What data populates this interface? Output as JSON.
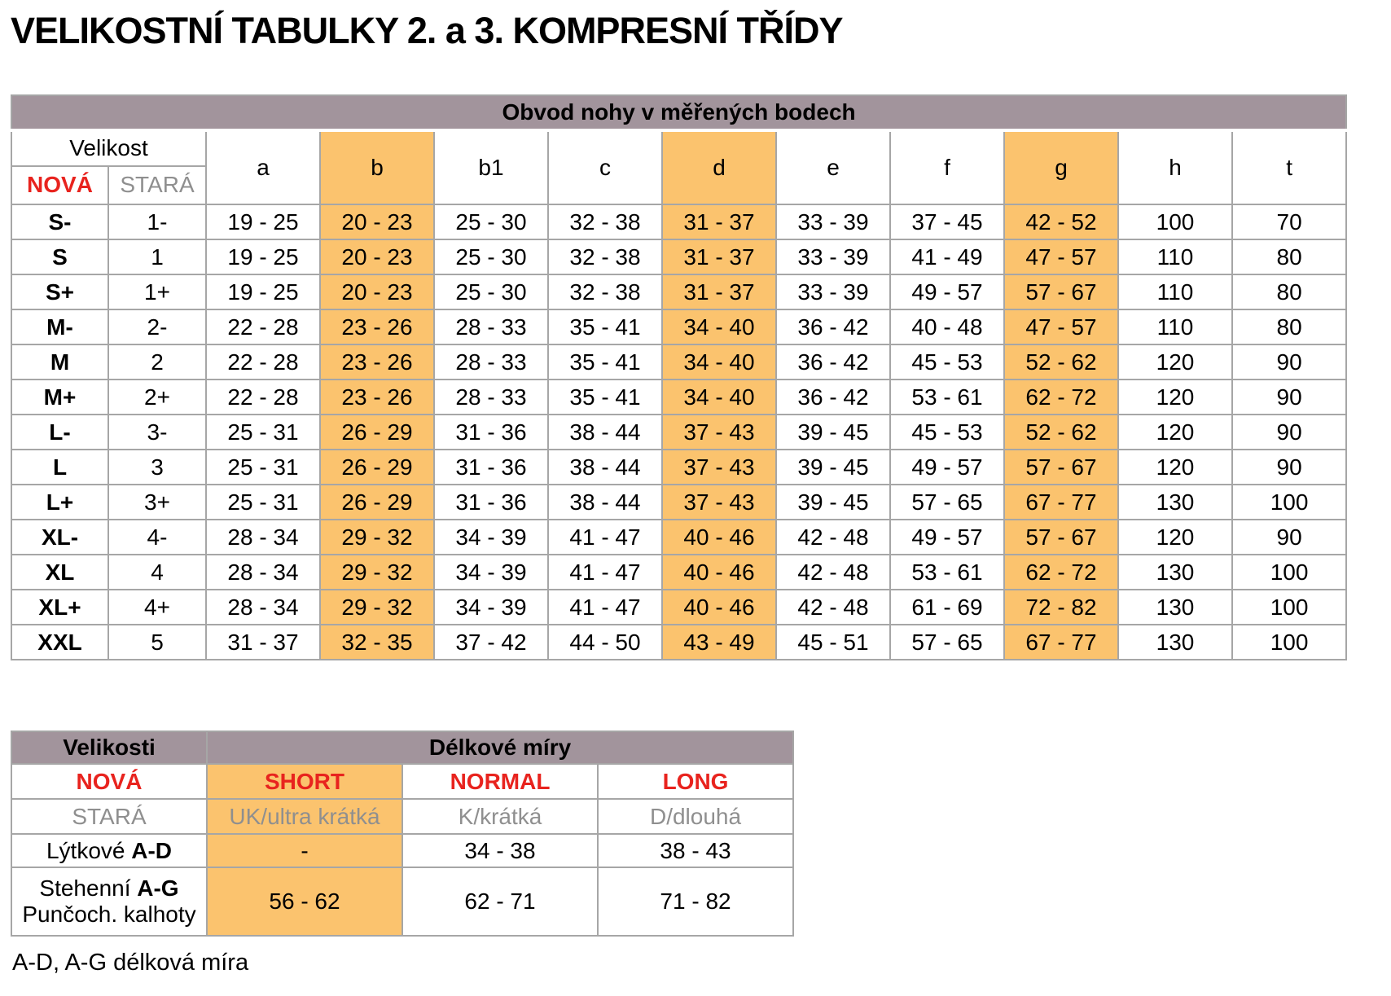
{
  "title": "VELIKOSTNÍ TABULKY 2. a 3. KOMPRESNÍ TŘÍDY",
  "colors": {
    "header_band": "#a2949c",
    "highlight": "#fbc36e",
    "accent_red": "#e8231e",
    "muted_gray": "#8f8f8f",
    "border_gray": "#a6a6a6"
  },
  "size_table": {
    "band_title": "Obvod nohy v měřených bodech",
    "size_header": "Velikost",
    "new_label": "NOVÁ",
    "old_label": "STARÁ",
    "columns": [
      "a",
      "b",
      "b1",
      "c",
      "d",
      "e",
      "f",
      "g",
      "h",
      "t"
    ],
    "highlight_indexes": [
      1,
      4,
      7
    ],
    "rows": [
      {
        "new": "S-",
        "old": "1-",
        "values": [
          "19 - 25",
          "20 - 23",
          "25 - 30",
          "32 - 38",
          "31 - 37",
          "33 - 39",
          "37 - 45",
          "42 - 52",
          "100",
          "70"
        ]
      },
      {
        "new": "S",
        "old": "1",
        "values": [
          "19 - 25",
          "20 - 23",
          "25 - 30",
          "32 - 38",
          "31 - 37",
          "33 - 39",
          "41 - 49",
          "47 - 57",
          "110",
          "80"
        ]
      },
      {
        "new": "S+",
        "old": "1+",
        "values": [
          "19 - 25",
          "20 - 23",
          "25 - 30",
          "32 - 38",
          "31 - 37",
          "33 - 39",
          "49 - 57",
          "57 - 67",
          "110",
          "80"
        ]
      },
      {
        "new": "M-",
        "old": "2-",
        "values": [
          "22 - 28",
          "23 - 26",
          "28 - 33",
          "35 - 41",
          "34 - 40",
          "36 - 42",
          "40 - 48",
          "47 - 57",
          "110",
          "80"
        ]
      },
      {
        "new": "M",
        "old": "2",
        "values": [
          "22 - 28",
          "23 - 26",
          "28 - 33",
          "35 - 41",
          "34 - 40",
          "36 - 42",
          "45 - 53",
          "52 - 62",
          "120",
          "90"
        ]
      },
      {
        "new": "M+",
        "old": "2+",
        "values": [
          "22 - 28",
          "23 - 26",
          "28 - 33",
          "35 - 41",
          "34 - 40",
          "36 - 42",
          "53 - 61",
          "62 - 72",
          "120",
          "90"
        ]
      },
      {
        "new": "L-",
        "old": "3-",
        "values": [
          "25 - 31",
          "26 - 29",
          "31 - 36",
          "38 - 44",
          "37 - 43",
          "39 - 45",
          "45 - 53",
          "52 - 62",
          "120",
          "90"
        ]
      },
      {
        "new": "L",
        "old": "3",
        "values": [
          "25 - 31",
          "26 - 29",
          "31 - 36",
          "38 - 44",
          "37 - 43",
          "39 - 45",
          "49 - 57",
          "57 - 67",
          "120",
          "90"
        ]
      },
      {
        "new": "L+",
        "old": "3+",
        "values": [
          "25 - 31",
          "26 - 29",
          "31 - 36",
          "38 - 44",
          "37 - 43",
          "39 - 45",
          "57 - 65",
          "67 - 77",
          "130",
          "100"
        ]
      },
      {
        "new": "XL-",
        "old": "4-",
        "values": [
          "28 - 34",
          "29 - 32",
          "34 - 39",
          "41 - 47",
          "40 - 46",
          "42 - 48",
          "49 - 57",
          "57 - 67",
          "120",
          "90"
        ]
      },
      {
        "new": "XL",
        "old": "4",
        "values": [
          "28 - 34",
          "29 - 32",
          "34 - 39",
          "41 - 47",
          "40 - 46",
          "42 - 48",
          "53 - 61",
          "62 - 72",
          "130",
          "100"
        ]
      },
      {
        "new": "XL+",
        "old": "4+",
        "values": [
          "28 - 34",
          "29 - 32",
          "34 - 39",
          "41 - 47",
          "40 - 46",
          "42 - 48",
          "61 - 69",
          "72 - 82",
          "130",
          "100"
        ]
      },
      {
        "new": "XXL",
        "old": "5",
        "values": [
          "31 - 37",
          "32 - 35",
          "37 - 42",
          "44 - 50",
          "43 - 49",
          "45 - 51",
          "57 - 65",
          "67 - 77",
          "130",
          "100"
        ]
      }
    ]
  },
  "length_table": {
    "corner_title": "Velikosti",
    "band_title": "Délkové míry",
    "new_label": "NOVÁ",
    "old_label": "STARÁ",
    "length_columns": [
      "SHORT",
      "NORMAL",
      "LONG"
    ],
    "old_names": [
      "UK/ultra krátká",
      "K/krátká",
      "D/dlouhá"
    ],
    "highlight_column_index": 0,
    "rows": [
      {
        "label_prefix": "Lýtkové ",
        "label_bold": "A-D",
        "label_line2": "",
        "values": [
          "-",
          "34 - 38",
          "38 - 43"
        ]
      },
      {
        "label_prefix": "Stehenní ",
        "label_bold": "A-G",
        "label_line2": "Punčoch. kalhoty",
        "values": [
          "56 - 62",
          "62 - 71",
          "71 - 82"
        ]
      }
    ]
  },
  "footer_note": "A-D, A-G délková míra"
}
